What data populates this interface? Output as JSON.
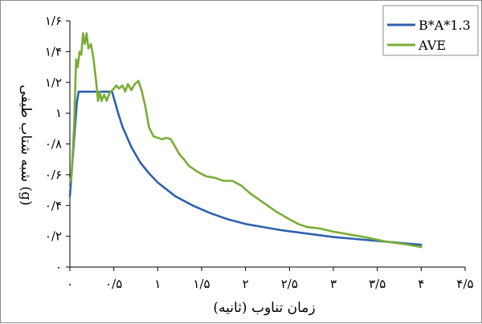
{
  "chart_data": {
    "type": "line",
    "xlabel": "زمان تناوب (ثانیه)",
    "ylabel": "شبه شتاب طیفی (g)",
    "xlim": [
      0,
      4.5
    ],
    "ylim": [
      0,
      1.6
    ],
    "x_ticks": [
      {
        "value": 0,
        "label": "۰"
      },
      {
        "value": 0.5,
        "label": "۰/۵"
      },
      {
        "value": 1,
        "label": "۱"
      },
      {
        "value": 1.5,
        "label": "۱/۵"
      },
      {
        "value": 2,
        "label": "۲"
      },
      {
        "value": 2.5,
        "label": "۲/۵"
      },
      {
        "value": 3,
        "label": "۳"
      },
      {
        "value": 3.5,
        "label": "۳/۵"
      },
      {
        "value": 4,
        "label": "۴"
      },
      {
        "value": 4.5,
        "label": "۴/۵"
      }
    ],
    "y_ticks": [
      {
        "value": 0,
        "label": "۰"
      },
      {
        "value": 0.2,
        "label": "۰/۲"
      },
      {
        "value": 0.4,
        "label": "۰/۴"
      },
      {
        "value": 0.6,
        "label": "۰/۶"
      },
      {
        "value": 0.8,
        "label": "۰/۸"
      },
      {
        "value": 1.0,
        "label": "۱"
      },
      {
        "value": 1.2,
        "label": "۱/۲"
      },
      {
        "value": 1.4,
        "label": "۱/۴"
      },
      {
        "value": 1.6,
        "label": "۱/۶"
      }
    ],
    "grid": false,
    "legend_position": "top-right",
    "series": [
      {
        "name": "B*A*1.3",
        "color": "#2e62ad",
        "points": [
          [
            0.0,
            0.46
          ],
          [
            0.02,
            0.62
          ],
          [
            0.05,
            0.85
          ],
          [
            0.08,
            1.07
          ],
          [
            0.1,
            1.14
          ],
          [
            0.2,
            1.14
          ],
          [
            0.3,
            1.14
          ],
          [
            0.4,
            1.14
          ],
          [
            0.48,
            1.14
          ],
          [
            0.55,
            1.0
          ],
          [
            0.6,
            0.91
          ],
          [
            0.7,
            0.78
          ],
          [
            0.8,
            0.68
          ],
          [
            0.9,
            0.61
          ],
          [
            1.0,
            0.55
          ],
          [
            1.2,
            0.46
          ],
          [
            1.4,
            0.4
          ],
          [
            1.6,
            0.35
          ],
          [
            1.8,
            0.31
          ],
          [
            2.0,
            0.28
          ],
          [
            2.2,
            0.26
          ],
          [
            2.4,
            0.24
          ],
          [
            2.6,
            0.225
          ],
          [
            2.8,
            0.21
          ],
          [
            3.0,
            0.195
          ],
          [
            3.2,
            0.185
          ],
          [
            3.4,
            0.175
          ],
          [
            3.6,
            0.165
          ],
          [
            3.8,
            0.155
          ],
          [
            4.0,
            0.145
          ]
        ]
      },
      {
        "name": "AVE",
        "color": "#7aad36",
        "points": [
          [
            0.0,
            0.55
          ],
          [
            0.02,
            0.6
          ],
          [
            0.05,
            0.95
          ],
          [
            0.07,
            1.35
          ],
          [
            0.09,
            1.3
          ],
          [
            0.11,
            1.4
          ],
          [
            0.13,
            1.38
          ],
          [
            0.15,
            1.52
          ],
          [
            0.17,
            1.45
          ],
          [
            0.19,
            1.52
          ],
          [
            0.21,
            1.42
          ],
          [
            0.24,
            1.45
          ],
          [
            0.27,
            1.35
          ],
          [
            0.3,
            1.2
          ],
          [
            0.32,
            1.08
          ],
          [
            0.34,
            1.14
          ],
          [
            0.36,
            1.08
          ],
          [
            0.39,
            1.12
          ],
          [
            0.42,
            1.08
          ],
          [
            0.45,
            1.13
          ],
          [
            0.5,
            1.16
          ],
          [
            0.53,
            1.18
          ],
          [
            0.56,
            1.16
          ],
          [
            0.6,
            1.18
          ],
          [
            0.63,
            1.14
          ],
          [
            0.66,
            1.19
          ],
          [
            0.7,
            1.15
          ],
          [
            0.74,
            1.19
          ],
          [
            0.78,
            1.21
          ],
          [
            0.82,
            1.14
          ],
          [
            0.86,
            1.04
          ],
          [
            0.9,
            0.91
          ],
          [
            0.95,
            0.85
          ],
          [
            1.0,
            0.84
          ],
          [
            1.05,
            0.83
          ],
          [
            1.1,
            0.84
          ],
          [
            1.15,
            0.83
          ],
          [
            1.2,
            0.78
          ],
          [
            1.25,
            0.73
          ],
          [
            1.3,
            0.7
          ],
          [
            1.35,
            0.66
          ],
          [
            1.4,
            0.64
          ],
          [
            1.45,
            0.62
          ],
          [
            1.55,
            0.59
          ],
          [
            1.65,
            0.58
          ],
          [
            1.75,
            0.56
          ],
          [
            1.85,
            0.56
          ],
          [
            1.95,
            0.53
          ],
          [
            2.05,
            0.48
          ],
          [
            2.2,
            0.42
          ],
          [
            2.35,
            0.36
          ],
          [
            2.5,
            0.31
          ],
          [
            2.6,
            0.28
          ],
          [
            2.7,
            0.26
          ],
          [
            2.85,
            0.25
          ],
          [
            3.0,
            0.23
          ],
          [
            3.2,
            0.21
          ],
          [
            3.4,
            0.19
          ],
          [
            3.6,
            0.165
          ],
          [
            3.8,
            0.15
          ],
          [
            4.0,
            0.13
          ]
        ]
      }
    ]
  }
}
